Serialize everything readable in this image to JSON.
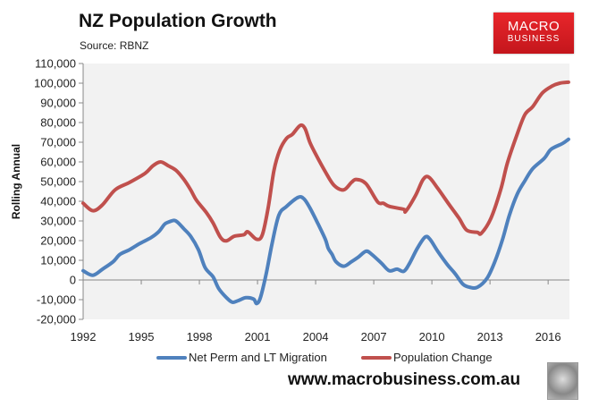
{
  "header": {
    "title": "NZ Population Growth",
    "source": "Source: RBNZ"
  },
  "logo": {
    "line1": "MACRO",
    "line2": "BUSINESS",
    "color": "#d71f25"
  },
  "footer": {
    "website": "www.macrobusiness.com.au",
    "icon": "wolf-logo-icon"
  },
  "chart_data": {
    "type": "line",
    "title": "NZ Population Growth",
    "ylabel": "Rolling Annual",
    "xlabel": "",
    "xlim": [
      1992,
      2017.1
    ],
    "ylim": [
      -20000,
      110000
    ],
    "xticks": [
      "1992",
      "1995",
      "1998",
      "2001",
      "2004",
      "2007",
      "2010",
      "2013",
      "2016"
    ],
    "yticks": [
      "-20,000",
      "-10,000",
      "0",
      "10,000",
      "20,000",
      "30,000",
      "40,000",
      "50,000",
      "60,000",
      "70,000",
      "80,000",
      "90,000",
      "100,000",
      "110,000"
    ],
    "grid": false,
    "legend": "bottom",
    "series": [
      {
        "name": "Net Perm and LT Migration",
        "color": "#4f81bd",
        "x": [
          1992.0,
          1992.5,
          1993.0,
          1993.55,
          1993.9,
          1994.4,
          1994.9,
          1995.5,
          1995.9,
          1996.2,
          1996.4,
          1996.7,
          1996.9,
          1997.2,
          1997.55,
          1997.95,
          1998.3,
          1998.7,
          1999.0,
          1999.4,
          1999.7,
          2000.0,
          2000.4,
          2000.8,
          2000.95,
          2001.15,
          2001.45,
          2001.75,
          2002.1,
          2002.5,
          2003.1,
          2003.4,
          2003.7,
          2004.1,
          2004.5,
          2004.65,
          2004.85,
          2005.05,
          2005.45,
          2005.85,
          2006.2,
          2006.6,
          2006.9,
          2007.4,
          2007.8,
          2008.2,
          2008.55,
          2008.85,
          2009.25,
          2009.65,
          2009.9,
          2010.3,
          2010.8,
          2011.2,
          2011.6,
          2011.95,
          2012.35,
          2012.85,
          2013.25,
          2013.65,
          2014.0,
          2014.4,
          2014.8,
          2015.2,
          2015.8,
          2016.15,
          2016.75,
          2017.05
        ],
        "y": [
          4700,
          2400,
          5500,
          9300,
          13000,
          15400,
          18400,
          21500,
          24500,
          28300,
          29400,
          30300,
          29100,
          26000,
          22200,
          15400,
          6200,
          1700,
          -4400,
          -9000,
          -11300,
          -10500,
          -9000,
          -9700,
          -12000,
          -9000,
          3200,
          18400,
          32900,
          37400,
          42000,
          41200,
          36700,
          29000,
          20700,
          16100,
          13000,
          9300,
          7000,
          9300,
          11600,
          14600,
          13000,
          8500,
          4700,
          5500,
          4400,
          8500,
          16100,
          21800,
          20700,
          14600,
          7800,
          3200,
          -2100,
          -3700,
          -3700,
          900,
          9300,
          20700,
          32900,
          43500,
          50400,
          56500,
          61800,
          66400,
          69400,
          71500
        ]
      },
      {
        "name": "Population Change",
        "color": "#c0504d",
        "x": [
          1992.0,
          1992.5,
          1993.0,
          1993.65,
          1994.4,
          1995.2,
          1995.6,
          1996.0,
          1996.4,
          1996.8,
          1997.2,
          1997.55,
          1997.85,
          1998.35,
          1998.7,
          1999.1,
          1999.4,
          1999.8,
          2000.3,
          2000.5,
          2000.95,
          2001.25,
          2001.55,
          2001.85,
          2002.15,
          2002.5,
          2002.8,
          2003.2,
          2003.45,
          2003.7,
          2004.0,
          2004.5,
          2004.95,
          2005.45,
          2005.85,
          2006.1,
          2006.6,
          2007.2,
          2007.5,
          2007.8,
          2008.55,
          2008.65,
          2009.15,
          2009.55,
          2009.85,
          2010.3,
          2010.9,
          2011.4,
          2011.8,
          2012.35,
          2012.55,
          2013.05,
          2013.55,
          2013.9,
          2014.4,
          2014.8,
          2015.2,
          2015.7,
          2016.2,
          2016.6,
          2017.05
        ],
        "y": [
          39000,
          35200,
          38200,
          45800,
          49600,
          54200,
          58000,
          60000,
          58000,
          55700,
          51100,
          45800,
          40500,
          34400,
          29100,
          21500,
          19900,
          22200,
          23000,
          24500,
          20700,
          23000,
          36700,
          55700,
          66000,
          72000,
          74000,
          78500,
          77000,
          70000,
          64000,
          55000,
          48100,
          45800,
          49600,
          51100,
          48900,
          39700,
          39000,
          37400,
          35900,
          34900,
          42800,
          51100,
          52200,
          46600,
          38200,
          31400,
          25300,
          24200,
          23700,
          31400,
          45800,
          59500,
          74000,
          84000,
          88000,
          95000,
          98500,
          100000,
          100500
        ]
      }
    ]
  }
}
